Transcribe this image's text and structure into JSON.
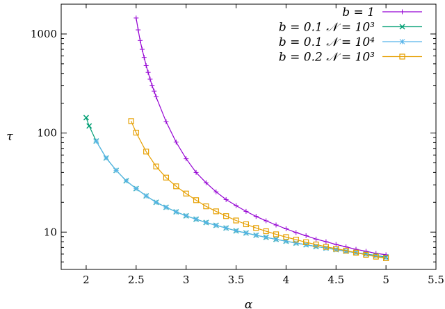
{
  "chart_data": {
    "type": "line",
    "title": "",
    "xlabel": "α",
    "ylabel": "τ",
    "xlim": [
      1.75,
      5.5
    ],
    "ylim": [
      4.2,
      2000
    ],
    "yscale": "log",
    "xticks": [
      "2",
      "2.5",
      "3",
      "3.5",
      "4",
      "4.5",
      "5",
      "5.5"
    ],
    "yticks": [
      "10",
      "100",
      "1000"
    ],
    "grid": false,
    "legend_position": "top-right",
    "series": [
      {
        "name": "b = 1",
        "color": "#9400d3",
        "marker": "plus",
        "x": [
          2.5,
          2.52,
          2.54,
          2.56,
          2.58,
          2.6,
          2.62,
          2.64,
          2.66,
          2.68,
          2.7,
          2.8,
          2.9,
          3.0,
          3.1,
          3.2,
          3.3,
          3.4,
          3.5,
          3.6,
          3.7,
          3.8,
          3.9,
          4.0,
          4.1,
          4.2,
          4.3,
          4.4,
          4.5,
          4.6,
          4.7,
          4.8,
          4.9,
          5.0
        ],
        "y": [
          1450,
          1100,
          860,
          700,
          580,
          480,
          410,
          350,
          300,
          265,
          232,
          130,
          81,
          55,
          40,
          31.5,
          25.5,
          21.3,
          18.5,
          16.2,
          14.4,
          13.0,
          11.8,
          10.8,
          9.9,
          9.2,
          8.5,
          8.0,
          7.5,
          7.1,
          6.7,
          6.4,
          6.1,
          5.9
        ]
      },
      {
        "name": "b = 0.1 𝒩 = 10³",
        "color": "#009e73",
        "marker": "cross",
        "x": [
          2.0,
          2.03,
          2.1,
          2.2,
          2.3,
          2.4,
          2.5,
          2.6,
          2.7,
          2.8,
          2.9,
          3.0,
          3.1,
          3.2,
          3.3,
          3.4,
          3.5,
          3.6,
          3.7,
          3.8,
          3.9,
          4.0,
          4.1,
          4.2,
          4.3,
          4.4,
          4.5,
          4.6,
          4.7,
          4.8,
          4.9,
          5.0
        ],
        "y": [
          143,
          118,
          83,
          56,
          42,
          33,
          27.5,
          23.2,
          20.0,
          17.8,
          16.0,
          14.6,
          13.5,
          12.5,
          11.7,
          11.0,
          10.3,
          9.8,
          9.3,
          8.85,
          8.45,
          8.1,
          7.75,
          7.45,
          7.15,
          6.9,
          6.65,
          6.4,
          6.2,
          6.0,
          5.8,
          5.6
        ]
      },
      {
        "name": "b = 0.1 𝒩 = 10⁴",
        "color": "#56b4e9",
        "marker": "star",
        "x": [
          2.1,
          2.2,
          2.3,
          2.4,
          2.5,
          2.6,
          2.7,
          2.8,
          2.9,
          3.0,
          3.1,
          3.2,
          3.3,
          3.4,
          3.5,
          3.6,
          3.7,
          3.8,
          3.9,
          4.0,
          4.1,
          4.2,
          4.3,
          4.4,
          4.5,
          4.6,
          4.7,
          4.8,
          4.9,
          5.0
        ],
        "y": [
          83,
          56,
          42,
          33,
          27.5,
          23.2,
          20.0,
          17.8,
          16.0,
          14.6,
          13.5,
          12.5,
          11.7,
          11.0,
          10.3,
          9.8,
          9.3,
          8.85,
          8.45,
          8.1,
          7.75,
          7.45,
          7.15,
          6.9,
          6.65,
          6.4,
          6.2,
          5.95,
          5.75,
          5.5
        ]
      },
      {
        "name": "b = 0.2 𝒩 = 10³",
        "color": "#e69f00",
        "marker": "square",
        "x": [
          2.45,
          2.5,
          2.6,
          2.7,
          2.8,
          2.9,
          3.0,
          3.1,
          3.2,
          3.3,
          3.4,
          3.5,
          3.6,
          3.7,
          3.8,
          3.9,
          4.0,
          4.1,
          4.2,
          4.3,
          4.4,
          4.5,
          4.6,
          4.7,
          4.8,
          4.9,
          5.0
        ],
        "y": [
          132,
          101,
          65,
          46,
          35.5,
          29.0,
          24.5,
          21.0,
          18.2,
          16.2,
          14.5,
          13.1,
          12.0,
          11.0,
          10.2,
          9.5,
          8.9,
          8.4,
          7.9,
          7.5,
          7.1,
          6.8,
          6.5,
          6.2,
          5.9,
          5.65,
          5.45
        ]
      }
    ]
  }
}
